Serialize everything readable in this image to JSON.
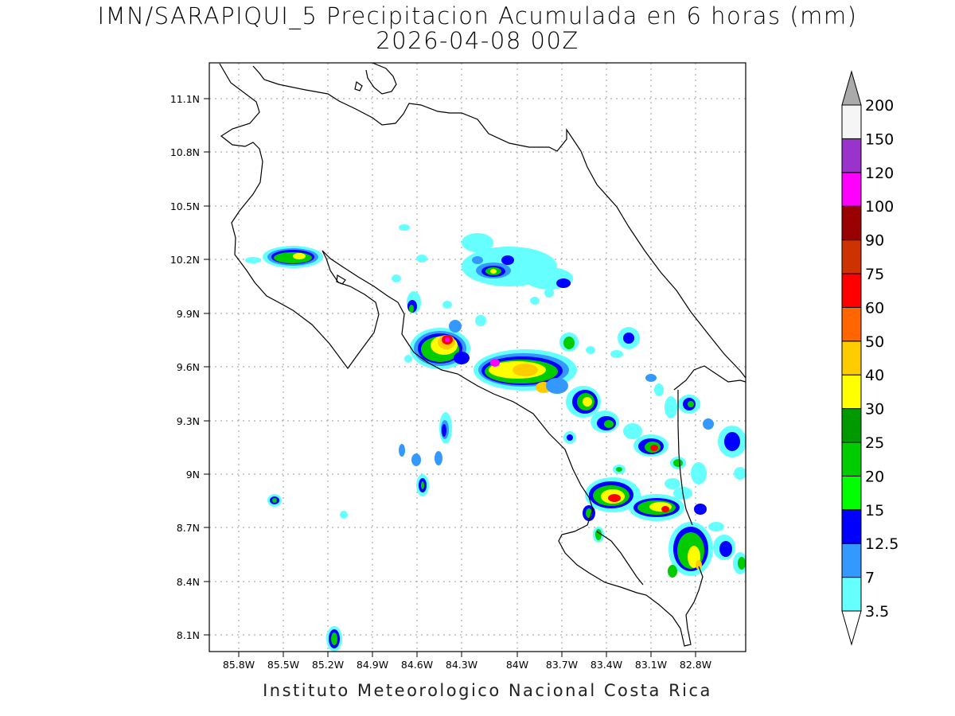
{
  "title_line1": "IMN/SARAPIQUI_5 Precipitacion Acumulada en 6 horas (mm)",
  "title_line2": "2026-04-08 00Z",
  "credit": "Instituto Meteorologico Nacional Costa Rica",
  "lon_ticks": [
    "85.8W",
    "85.5W",
    "85.2W",
    "84.9W",
    "84.6W",
    "84.3W",
    "84W",
    "83.7W",
    "83.4W",
    "83.1W",
    "82.8W"
  ],
  "lat_ticks": [
    "11.1N",
    "10.8N",
    "10.5N",
    "10.2N",
    "9.9N",
    "9.6N",
    "9.3N",
    "9N",
    "8.7N",
    "8.4N",
    "8.1N"
  ],
  "colorbar": {
    "labels": [
      "3.5",
      "7",
      "12.5",
      "15",
      "20",
      "25",
      "30",
      "40",
      "50",
      "60",
      "75",
      "90",
      "100",
      "120",
      "150",
      "200"
    ],
    "colors": [
      "#66ffff",
      "#3399ff",
      "#0000ff",
      "#00ff00",
      "#00cc00",
      "#009900",
      "#ffff00",
      "#ffcc00",
      "#ff6600",
      "#ff0000",
      "#cc3300",
      "#990000",
      "#ff00ff",
      "#9933cc",
      "#f5f5f5"
    ],
    "under_color": "#ffffff",
    "over_color": "#aaaaaa"
  }
}
